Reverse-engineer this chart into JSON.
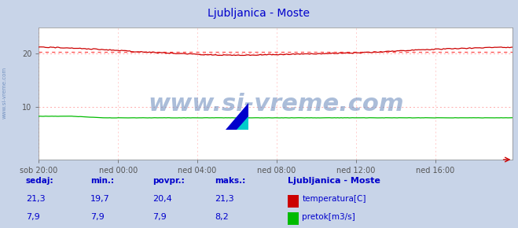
{
  "title": "Ljubljanica - Moste",
  "title_color": "#0000cc",
  "outer_bg_color": "#c8d4e8",
  "plot_bg_color": "#ffffff",
  "grid_color_h": "#ffaaaa",
  "grid_color_v": "#ffcccc",
  "x_tick_labels": [
    "sob 20:00",
    "ned 00:00",
    "ned 04:00",
    "ned 08:00",
    "ned 12:00",
    "ned 16:00"
  ],
  "x_tick_positions": [
    0,
    48,
    96,
    144,
    192,
    240
  ],
  "ylim": [
    0,
    25
  ],
  "yticks": [
    10,
    20
  ],
  "temp_avg": 20.4,
  "temp_min": 19.7,
  "temp_max": 21.3,
  "temp_color": "#cc0000",
  "flow_color": "#00bb00",
  "avg_line_color": "#ff5555",
  "watermark_text": "www.si-vreme.com",
  "watermark_color": "#6688bb",
  "watermark_fontsize": 22,
  "left_label": "www.si-vreme.com",
  "left_label_color": "#6688bb",
  "legend_title": "Ljubljanica - Moste",
  "legend_title_color": "#0000cc",
  "label_color": "#0000cc",
  "n_points": 288,
  "headers": [
    "sedaj:",
    "min.:",
    "povpr.:",
    "maks.:"
  ],
  "temp_vals": [
    "21,3",
    "19,7",
    "20,4",
    "21,3"
  ],
  "flow_vals": [
    "7,9",
    "7,9",
    "7,9",
    "8,2"
  ],
  "legend_temp_label": "temperatura[C]",
  "legend_flow_label": "pretok[m3/s]"
}
